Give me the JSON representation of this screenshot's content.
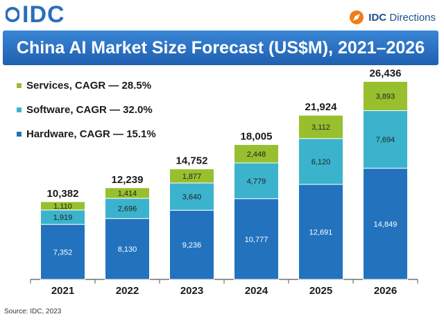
{
  "branding": {
    "left_logo": "IDC",
    "right_logo_bold": "IDC",
    "right_logo_text": "Directions"
  },
  "colors": {
    "hardware": "#2272be",
    "software": "#3bb3cc",
    "services": "#98bf2e",
    "banner": "#2a6ebb"
  },
  "chart_data": {
    "type": "bar",
    "stacked": true,
    "title": "China AI Market Size Forecast (US$M), 2021–2026",
    "categories": [
      "2021",
      "2022",
      "2023",
      "2024",
      "2025",
      "2026"
    ],
    "totals": [
      10382,
      12239,
      14752,
      18005,
      21924,
      26436
    ],
    "total_labels": [
      "10,382",
      "12,239",
      "14,752",
      "18,005",
      "21,924",
      "26,436"
    ],
    "series": [
      {
        "name": "Hardware, CAGR — 15.1%",
        "key": "hardware",
        "values": [
          7352,
          8130,
          9236,
          10777,
          12691,
          14849
        ],
        "labels": [
          "7,352",
          "8,130",
          "9,236",
          "10,777",
          "12,691",
          "14,849"
        ]
      },
      {
        "name": "Software, CAGR — 32.0%",
        "key": "software",
        "values": [
          1919,
          2696,
          3640,
          4779,
          6120,
          7694
        ],
        "labels": [
          "1,919",
          "2,696",
          "3,640",
          "4,779",
          "6,120",
          "7,694"
        ]
      },
      {
        "name": "Services, CAGR — 28.5%",
        "key": "services",
        "values": [
          1110,
          1414,
          1877,
          2448,
          3112,
          3893
        ],
        "labels": [
          "1,110",
          "1,414",
          "1,877",
          "2,448",
          "3,112",
          "3,893"
        ]
      }
    ],
    "legend_order": [
      "services",
      "software",
      "hardware"
    ],
    "ylim": [
      0,
      30000
    ],
    "xlabel": "",
    "ylabel": "",
    "grid": false,
    "legend_position": "top-left"
  },
  "source": "Source: IDC, 2023"
}
